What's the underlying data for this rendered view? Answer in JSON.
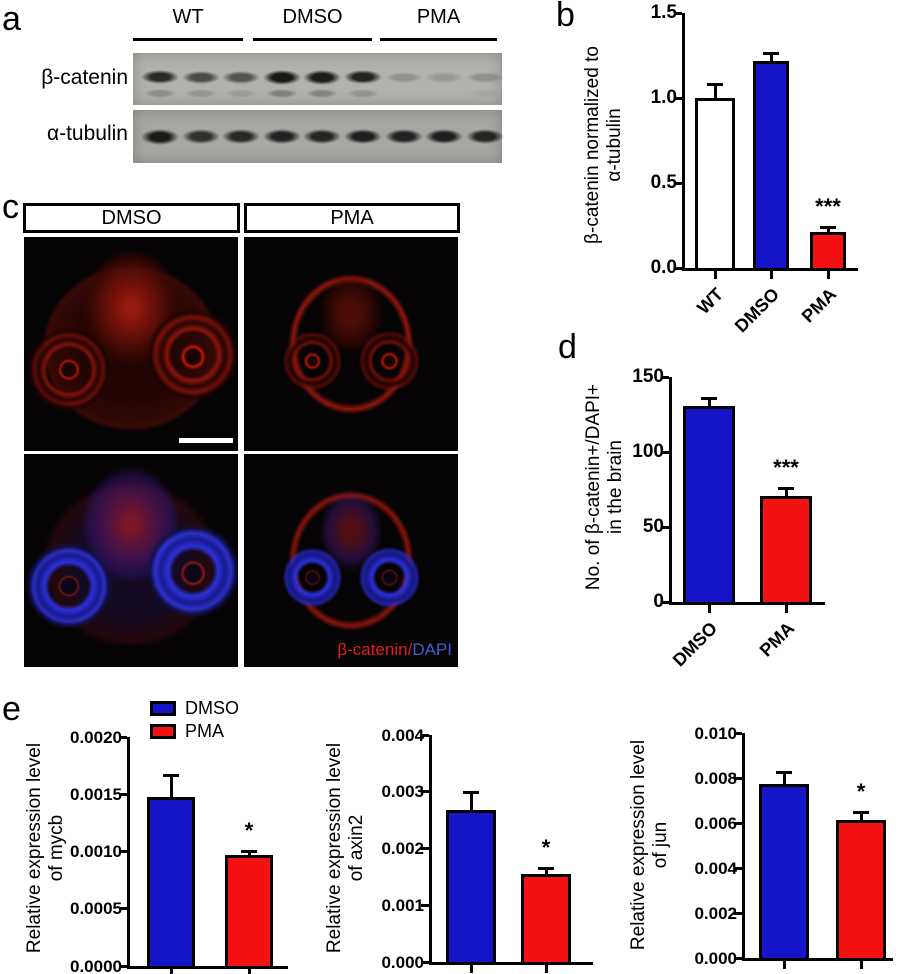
{
  "panels": {
    "a": {
      "label": "a",
      "groups": [
        "WT",
        "DMSO",
        "PMA"
      ],
      "lanes_per_group": 3,
      "rows": [
        {
          "label": "β-catenin",
          "intensities": [
            0.88,
            0.66,
            0.6,
            1.0,
            0.97,
            0.92,
            0.2,
            0.16,
            0.2
          ],
          "smear_intensities": [
            0.4,
            0.3,
            0.22,
            0.55,
            0.5,
            0.32,
            0,
            0,
            0.1
          ]
        },
        {
          "label": "α-tubulin",
          "intensities": [
            0.97,
            0.82,
            0.88,
            0.92,
            0.9,
            0.95,
            0.92,
            0.95,
            0.9
          ],
          "smear_intensities": [
            0,
            0,
            0,
            0,
            0,
            0,
            0,
            0,
            0
          ]
        }
      ]
    },
    "b": {
      "label": "b"
    },
    "c": {
      "label": "c",
      "columns": [
        "DMSO",
        "PMA"
      ],
      "overlay": {
        "red_text": "β-catenin/",
        "blue_text": "DAPI"
      }
    },
    "d": {
      "label": "d"
    },
    "e": {
      "label": "e",
      "legend": [
        {
          "label": "DMSO",
          "color": "#1515c8"
        },
        {
          "label": "PMA",
          "color": "#f41111"
        }
      ]
    }
  },
  "colors": {
    "dmso_blue": "#1515c8",
    "pma_red": "#f41111",
    "wt_white": "#ffffff",
    "overlay_red": "#e31e1e",
    "overlay_blue": "#3f5fd0"
  },
  "chart_data": [
    {
      "id": "b",
      "type": "bar",
      "panel": "b",
      "ylabel_lines": [
        "β-catenin normalized to",
        "α-tubulin"
      ],
      "ylim": [
        0,
        1.5
      ],
      "yticks": [
        {
          "v": 0.0,
          "label": "0.0"
        },
        {
          "v": 0.5,
          "label": "0.5"
        },
        {
          "v": 1.0,
          "label": "1.0"
        },
        {
          "v": 1.5,
          "label": "1.5"
        }
      ],
      "show_xlabels": true,
      "bars": [
        {
          "category": "WT",
          "value": 1.0,
          "error": 0.09,
          "color": "#ffffff",
          "sig": ""
        },
        {
          "category": "DMSO",
          "value": 1.22,
          "error": 0.05,
          "color": "#1515c8",
          "sig": ""
        },
        {
          "category": "PMA",
          "value": 0.21,
          "error": 0.04,
          "color": "#f41111",
          "sig": "***"
        }
      ]
    },
    {
      "id": "d",
      "type": "bar",
      "panel": "d",
      "ylabel_lines": [
        "No. of β-catenin+/DAPI+",
        "in the brain"
      ],
      "ylim": [
        0,
        150
      ],
      "yticks": [
        {
          "v": 0,
          "label": "0"
        },
        {
          "v": 50,
          "label": "50"
        },
        {
          "v": 100,
          "label": "100"
        },
        {
          "v": 150,
          "label": "150"
        }
      ],
      "show_xlabels": true,
      "bars": [
        {
          "category": "DMSO",
          "value": 131,
          "error": 6,
          "color": "#1515c8",
          "sig": ""
        },
        {
          "category": "PMA",
          "value": 71,
          "error": 6,
          "color": "#f41111",
          "sig": "***"
        }
      ]
    },
    {
      "id": "e-mycb",
      "type": "bar",
      "panel": "e",
      "ylabel_lines": [
        "Relative expression level",
        "of mycb"
      ],
      "ylim": [
        0,
        0.002
      ],
      "yticks": [
        {
          "v": 0.0,
          "label": "0.0000"
        },
        {
          "v": 0.0005,
          "label": "0.0005"
        },
        {
          "v": 0.001,
          "label": "0.0010"
        },
        {
          "v": 0.0015,
          "label": "0.0015"
        },
        {
          "v": 0.002,
          "label": "0.0020"
        }
      ],
      "show_xlabels": false,
      "bars": [
        {
          "category": "DMSO",
          "value": 0.00148,
          "error": 0.0002,
          "color": "#1515c8",
          "sig": ""
        },
        {
          "category": "PMA",
          "value": 0.00097,
          "error": 4e-05,
          "color": "#f41111",
          "sig": "*"
        }
      ]
    },
    {
      "id": "e-axin2",
      "type": "bar",
      "panel": "e",
      "ylabel_lines": [
        "Relative expression level",
        "of axin2"
      ],
      "ylim": [
        0,
        0.004
      ],
      "yticks": [
        {
          "v": 0.0,
          "label": "0.000"
        },
        {
          "v": 0.001,
          "label": "0.001"
        },
        {
          "v": 0.002,
          "label": "0.002"
        },
        {
          "v": 0.003,
          "label": "0.003"
        },
        {
          "v": 0.004,
          "label": "0.004"
        }
      ],
      "show_xlabels": false,
      "bars": [
        {
          "category": "DMSO",
          "value": 0.00267,
          "error": 0.00035,
          "color": "#1515c8",
          "sig": ""
        },
        {
          "category": "PMA",
          "value": 0.00155,
          "error": 0.00013,
          "color": "#f41111",
          "sig": "*"
        }
      ]
    },
    {
      "id": "e-jun",
      "type": "bar",
      "panel": "e",
      "ylabel_lines": [
        "Relative expression level",
        "of jun"
      ],
      "ylim": [
        0,
        0.01
      ],
      "yticks": [
        {
          "v": 0.0,
          "label": "0.000"
        },
        {
          "v": 0.002,
          "label": "0.002"
        },
        {
          "v": 0.004,
          "label": "0.004"
        },
        {
          "v": 0.006,
          "label": "0.006"
        },
        {
          "v": 0.008,
          "label": "0.008"
        },
        {
          "v": 0.01,
          "label": "0.010"
        }
      ],
      "show_xlabels": false,
      "bars": [
        {
          "category": "DMSO",
          "value": 0.00775,
          "error": 0.00055,
          "color": "#1515c8",
          "sig": ""
        },
        {
          "category": "PMA",
          "value": 0.00615,
          "error": 0.0004,
          "color": "#f41111",
          "sig": "*"
        }
      ]
    }
  ]
}
